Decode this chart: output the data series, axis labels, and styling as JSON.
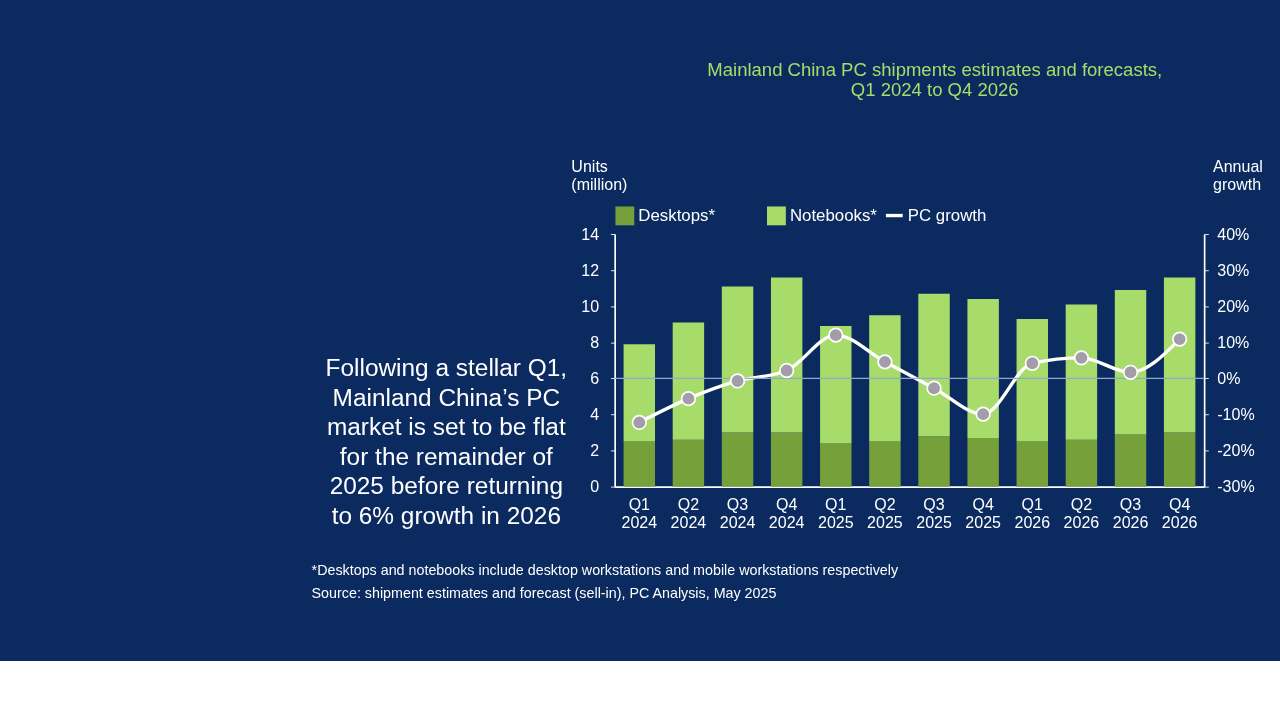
{
  "chart_data": {
    "type": "bar",
    "title": "Mainland China PC shipments estimates and forecasts,\nQ1 2024 to Q4 2026",
    "categories": [
      "Q1 2024",
      "Q2 2024",
      "Q3 2024",
      "Q4 2024",
      "Q1 2025",
      "Q2 2025",
      "Q3 2025",
      "Q4 2025",
      "Q1 2026",
      "Q2 2026",
      "Q3 2026",
      "Q4 2026"
    ],
    "stacked": true,
    "series": [
      {
        "name": "Desktops*",
        "color": "#76a03a",
        "values": [
          2.5,
          2.6,
          3.0,
          3.0,
          2.4,
          2.5,
          2.8,
          2.7,
          2.5,
          2.6,
          2.9,
          3.0
        ]
      },
      {
        "name": "Notebooks*",
        "color": "#a8dc6a",
        "values": [
          5.4,
          6.5,
          8.1,
          8.6,
          6.5,
          7.0,
          7.9,
          7.7,
          6.8,
          7.5,
          8.0,
          8.6
        ]
      },
      {
        "name": "PC growth",
        "type": "line",
        "axis": "y2",
        "color": "#ffffff",
        "values": [
          -12.2,
          -5.6,
          -0.7,
          2.2,
          12.0,
          4.6,
          -2.7,
          -9.9,
          4.2,
          5.7,
          1.7,
          10.9
        ]
      }
    ],
    "ylabel": "Units (million)",
    "y2label": "Annual growth",
    "ylim": [
      0,
      14
    ],
    "yticks": [
      0,
      2,
      4,
      6,
      8,
      10,
      12,
      14
    ],
    "y2lim": [
      -30,
      40
    ],
    "y2ticks": [
      {
        "value": -30,
        "label": "-30%"
      },
      {
        "value": -20,
        "label": "-20%"
      },
      {
        "value": -10,
        "label": "-10%"
      },
      {
        "value": 0,
        "label": "0%"
      },
      {
        "value": 10,
        "label": "10%"
      },
      {
        "value": 20,
        "label": "20%"
      },
      {
        "value": 30,
        "label": "30%"
      },
      {
        "value": 40,
        "label": "40%"
      }
    ],
    "ref_lines": [
      {
        "axis": "y2",
        "value": 0,
        "label": null,
        "color": "#8fa8cc"
      }
    ],
    "marker": "circle",
    "grid": false,
    "legend": "top",
    "annotations": [
      "Following a stellar Q1,\nMainland China’s PC\nmarket is set to be flat\nfor the remainder of\n2025 before returning\nto 6% growth in 2026",
      "*Desktops and notebooks include desktop workstations and mobile workstations respectively",
      "Source: shipment estimates and forecast (sell-in), PC Analysis, May 2025"
    ]
  }
}
